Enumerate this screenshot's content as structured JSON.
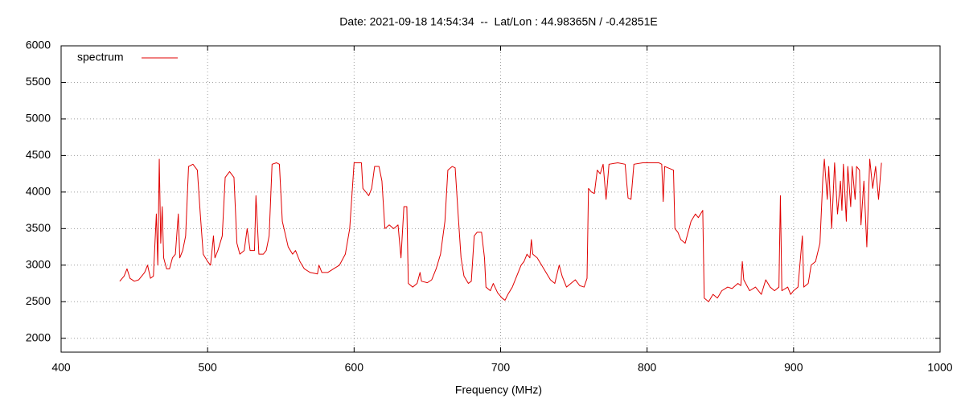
{
  "chart_data": {
    "type": "line",
    "title": "Date: 2021-09-18 14:54:34  --  Lat/Lon : 44.98365N / -0.42851E",
    "x_label": "Frequency (MHz)",
    "xlim": [
      400,
      1000
    ],
    "xticks": [
      400,
      500,
      600,
      700,
      800,
      900,
      1000
    ],
    "ylim": [
      1810,
      6000
    ],
    "yticks": [
      2000,
      2500,
      3000,
      3500,
      4000,
      4500,
      5000,
      5500,
      6000
    ],
    "grid": true,
    "legend": "top-left",
    "x": [
      440,
      443,
      445,
      447,
      450,
      453,
      455,
      457,
      459,
      461,
      463,
      465,
      466,
      467,
      468,
      469,
      470,
      472,
      474,
      476,
      478,
      480,
      481,
      483,
      485,
      487,
      490,
      493,
      495,
      497,
      500,
      502,
      504,
      505,
      507,
      510,
      512,
      515,
      518,
      520,
      522,
      525,
      527,
      529,
      532,
      533,
      535,
      538,
      540,
      542,
      544,
      547,
      549,
      551,
      555,
      558,
      560,
      563,
      566,
      570,
      575,
      576,
      578,
      582,
      586,
      590,
      594,
      597,
      600,
      605,
      606,
      608,
      610,
      612,
      614,
      617,
      619,
      621,
      624,
      627,
      630,
      632,
      634,
      636,
      637,
      640,
      643,
      645,
      646,
      650,
      653,
      656,
      659,
      662,
      664,
      667,
      669,
      671,
      673,
      675,
      678,
      680,
      682,
      684,
      687,
      689,
      690,
      693,
      695,
      698,
      701,
      703,
      705,
      708,
      711,
      714,
      716,
      718,
      720,
      721,
      722,
      725,
      728,
      731,
      734,
      737,
      740,
      742,
      745,
      748,
      751,
      754,
      757,
      759,
      760,
      762,
      764,
      766,
      768,
      770,
      772,
      774,
      780,
      785,
      787,
      789,
      791,
      797,
      802,
      808,
      810,
      811,
      812,
      818,
      819,
      821,
      823,
      826,
      828,
      830,
      833,
      835,
      838,
      839,
      842,
      845,
      848,
      851,
      855,
      858,
      862,
      864,
      865,
      866,
      870,
      874,
      878,
      881,
      884,
      887,
      890,
      891,
      892,
      896,
      898,
      900,
      903,
      906,
      907,
      910,
      912,
      915,
      918,
      920,
      921,
      923,
      924,
      926,
      928,
      930,
      932,
      933,
      934,
      936,
      937,
      939,
      940,
      942,
      943,
      945,
      946,
      948,
      950,
      952,
      954,
      956,
      958,
      960
    ],
    "series": [
      {
        "name": "spectrum",
        "color": "#e00000",
        "values": [
          2780,
          2850,
          2950,
          2820,
          2780,
          2800,
          2850,
          2900,
          3000,
          2820,
          2850,
          3700,
          3000,
          4450,
          3300,
          3800,
          3100,
          2950,
          2950,
          3100,
          3150,
          3700,
          3100,
          3200,
          3400,
          4350,
          4380,
          4300,
          3700,
          3150,
          3050,
          3000,
          3400,
          3100,
          3200,
          3400,
          4200,
          4280,
          4200,
          3300,
          3150,
          3200,
          3500,
          3200,
          3200,
          3950,
          3150,
          3150,
          3200,
          3400,
          4380,
          4400,
          4380,
          3600,
          3250,
          3150,
          3200,
          3050,
          2950,
          2900,
          2880,
          3000,
          2900,
          2900,
          2950,
          3000,
          3150,
          3500,
          4400,
          4400,
          4050,
          4000,
          3950,
          4050,
          4350,
          4350,
          4150,
          3500,
          3550,
          3500,
          3550,
          3100,
          3800,
          3800,
          2750,
          2700,
          2750,
          2900,
          2780,
          2760,
          2800,
          2950,
          3150,
          3600,
          4300,
          4350,
          4330,
          3700,
          3100,
          2850,
          2750,
          2780,
          3400,
          3450,
          3450,
          3100,
          2700,
          2650,
          2750,
          2620,
          2550,
          2520,
          2600,
          2700,
          2850,
          3000,
          3050,
          3150,
          3100,
          3350,
          3150,
          3100,
          3000,
          2900,
          2800,
          2750,
          3000,
          2850,
          2700,
          2750,
          2800,
          2720,
          2700,
          2820,
          4050,
          4000,
          3980,
          4300,
          4250,
          4380,
          3900,
          4380,
          4400,
          4380,
          3920,
          3900,
          4380,
          4400,
          4400,
          4400,
          4380,
          3870,
          4350,
          4300,
          3500,
          3450,
          3350,
          3300,
          3450,
          3600,
          3700,
          3650,
          3750,
          2550,
          2500,
          2600,
          2550,
          2650,
          2700,
          2680,
          2750,
          2720,
          3050,
          2800,
          2650,
          2700,
          2600,
          2800,
          2700,
          2650,
          2700,
          3950,
          2650,
          2700,
          2600,
          2650,
          2700,
          3400,
          2700,
          2750,
          3000,
          3050,
          3300,
          4200,
          4450,
          3900,
          4350,
          3500,
          4400,
          3700,
          4150,
          3750,
          4380,
          3600,
          4350,
          3800,
          4350,
          3900,
          4350,
          4300,
          3550,
          4150,
          3250,
          4450,
          4050,
          4350,
          3900,
          4400
        ]
      }
    ]
  }
}
